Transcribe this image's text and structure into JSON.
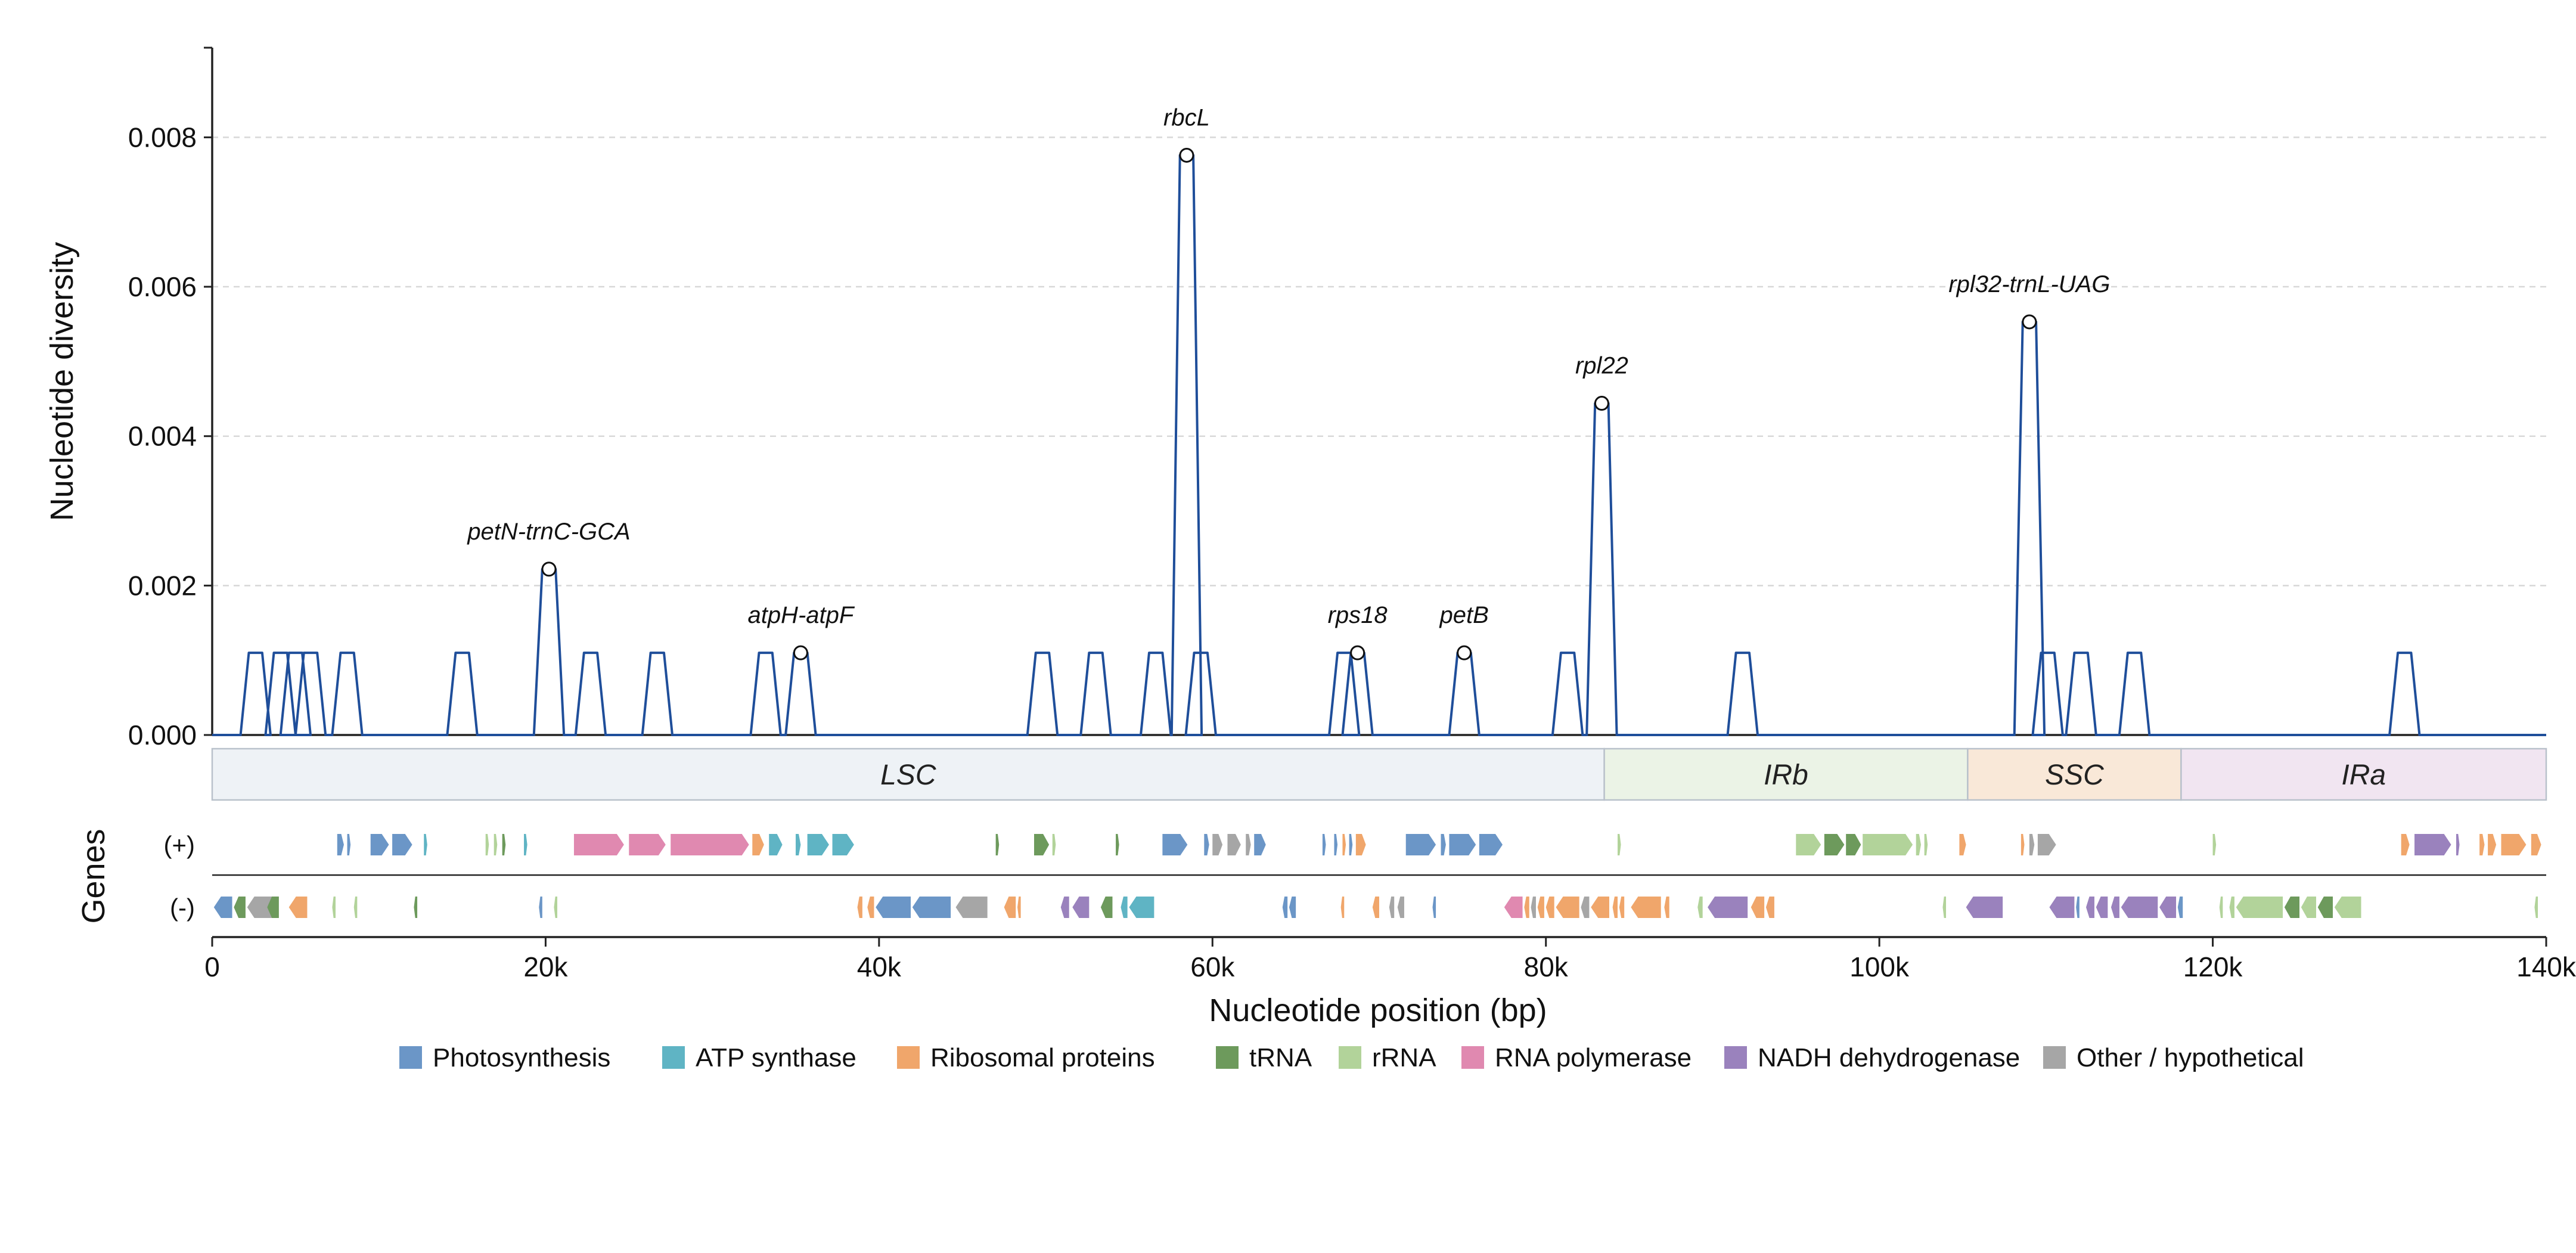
{
  "chart_data": {
    "type": "line",
    "ylabel": "Nucleotide diversity",
    "xlabel": "Nucleotide position (bp)",
    "ylim": [
      0,
      0.0092
    ],
    "xlim": [
      0,
      140000
    ],
    "grid": "horizontal dashed",
    "y_ticks": [
      {
        "value": 0,
        "label": "0.000"
      },
      {
        "value": 0.002,
        "label": "0.002"
      },
      {
        "value": 0.004,
        "label": "0.004"
      },
      {
        "value": 0.006,
        "label": "0.006"
      },
      {
        "value": 0.008,
        "label": "0.008"
      }
    ],
    "x_ticks": [
      {
        "value": 0,
        "label": "0"
      },
      {
        "value": 20000,
        "label": "20k"
      },
      {
        "value": 40000,
        "label": "40k"
      },
      {
        "value": 60000,
        "label": "60k"
      },
      {
        "value": 80000,
        "label": "80k"
      },
      {
        "value": 100000,
        "label": "100k"
      },
      {
        "value": 120000,
        "label": "120k"
      },
      {
        "value": 140000,
        "label": "140k"
      }
    ],
    "series": [
      {
        "color": "#1f4e9a",
        "peaks": [
          {
            "x": 2600,
            "y": 0.0011
          },
          {
            "x": 4100,
            "y": 0.0011
          },
          {
            "x": 5000,
            "y": 0.0011
          },
          {
            "x": 5900,
            "y": 0.0011
          },
          {
            "x": 8100,
            "y": 0.0011
          },
          {
            "x": 15000,
            "y": 0.0011
          },
          {
            "x": 20200,
            "y": 0.00222
          },
          {
            "x": 22700,
            "y": 0.0011
          },
          {
            "x": 26700,
            "y": 0.0011
          },
          {
            "x": 33200,
            "y": 0.0011
          },
          {
            "x": 35300,
            "y": 0.0011
          },
          {
            "x": 49800,
            "y": 0.0011
          },
          {
            "x": 53000,
            "y": 0.0011
          },
          {
            "x": 56600,
            "y": 0.0011
          },
          {
            "x": 58450,
            "y": 0.00776
          },
          {
            "x": 59300,
            "y": 0.0011
          },
          {
            "x": 67900,
            "y": 0.0011
          },
          {
            "x": 68700,
            "y": 0.0011
          },
          {
            "x": 75100,
            "y": 0.0011
          },
          {
            "x": 81300,
            "y": 0.0011
          },
          {
            "x": 83350,
            "y": 0.00444
          },
          {
            "x": 91800,
            "y": 0.0011
          },
          {
            "x": 109000,
            "y": 0.00553
          },
          {
            "x": 110100,
            "y": 0.0011
          },
          {
            "x": 112100,
            "y": 0.0011
          },
          {
            "x": 115300,
            "y": 0.0011
          },
          {
            "x": 131500,
            "y": 0.0011
          }
        ]
      }
    ],
    "annotations": [
      {
        "label": "petN-trnC-GCA",
        "x": 20200,
        "y": 0.00222
      },
      {
        "label": "atpH-atpF",
        "x": 35300,
        "y": 0.0011
      },
      {
        "label": "rbcL",
        "x": 58450,
        "y": 0.00776
      },
      {
        "label": "rps18",
        "x": 68700,
        "y": 0.0011
      },
      {
        "label": "petB",
        "x": 75100,
        "y": 0.0011
      },
      {
        "label": "rpl22",
        "x": 83350,
        "y": 0.00444
      },
      {
        "label": "rpl32-trnL-UAG",
        "x": 109000,
        "y": 0.00553
      }
    ],
    "regions": [
      {
        "label": "LSC",
        "start": 0,
        "end": 83500,
        "color": "#eef2f6"
      },
      {
        "label": "IRb",
        "start": 83500,
        "end": 105300,
        "color": "#ebf3e6"
      },
      {
        "label": "SSC",
        "start": 105300,
        "end": 118100,
        "color": "#f9e8d8"
      },
      {
        "label": "IRa",
        "start": 118100,
        "end": 140000,
        "color": "#f1e5f1"
      }
    ],
    "genes_axis_label": "Genes",
    "strand_labels": {
      "plus": "(+)",
      "minus": "(-)"
    },
    "legend": [
      {
        "label": "Photosynthesis",
        "color": "#6b96c7"
      },
      {
        "label": "ATP synthase",
        "color": "#5fb4c4"
      },
      {
        "label": "Ribosomal proteins",
        "color": "#f0a66b"
      },
      {
        "label": "tRNA",
        "color": "#6d9a5c"
      },
      {
        "label": "rRNA",
        "color": "#b2d39a"
      },
      {
        "label": "RNA polymerase",
        "color": "#e089b0"
      },
      {
        "label": "NADH dehydrogenase",
        "color": "#9a82bd"
      },
      {
        "label": "Other / hypothetical",
        "color": "#a6a6a6"
      }
    ],
    "genes_plus": [
      {
        "s": 7500,
        "e": 7900,
        "c": "Photosynthesis"
      },
      {
        "s": 8100,
        "e": 8300,
        "c": "Photosynthesis"
      },
      {
        "s": 9500,
        "e": 10600,
        "c": "Photosynthesis"
      },
      {
        "s": 10800,
        "e": 12000,
        "c": "Photosynthesis"
      },
      {
        "s": 12700,
        "e": 12900,
        "c": "ATP synthase"
      },
      {
        "s": 16400,
        "e": 16600,
        "c": "rRNA"
      },
      {
        "s": 16900,
        "e": 17100,
        "c": "rRNA"
      },
      {
        "s": 17400,
        "e": 17600,
        "c": "tRNA"
      },
      {
        "s": 18700,
        "e": 18900,
        "c": "ATP synthase"
      },
      {
        "s": 21700,
        "e": 24700,
        "c": "RNA polymerase"
      },
      {
        "s": 25000,
        "e": 27200,
        "c": "RNA polymerase"
      },
      {
        "s": 27500,
        "e": 32200,
        "c": "RNA polymerase"
      },
      {
        "s": 32400,
        "e": 33100,
        "c": "Ribosomal proteins"
      },
      {
        "s": 33400,
        "e": 34200,
        "c": "ATP synthase"
      },
      {
        "s": 35000,
        "e": 35300,
        "c": "ATP synthase"
      },
      {
        "s": 35700,
        "e": 37000,
        "c": "ATP synthase"
      },
      {
        "s": 37200,
        "e": 38500,
        "c": "ATP synthase"
      },
      {
        "s": 47000,
        "e": 47200,
        "c": "tRNA"
      },
      {
        "s": 49300,
        "e": 50200,
        "c": "tRNA"
      },
      {
        "s": 50400,
        "e": 50600,
        "c": "rRNA"
      },
      {
        "s": 54200,
        "e": 54400,
        "c": "tRNA"
      },
      {
        "s": 57000,
        "e": 58500,
        "c": "Photosynthesis"
      },
      {
        "s": 59500,
        "e": 59800,
        "c": "Photosynthesis"
      },
      {
        "s": 60000,
        "e": 60600,
        "c": "Other / hypothetical"
      },
      {
        "s": 60900,
        "e": 61700,
        "c": "Other / hypothetical"
      },
      {
        "s": 62000,
        "e": 62300,
        "c": "Other / hypothetical"
      },
      {
        "s": 62500,
        "e": 63200,
        "c": "Photosynthesis"
      },
      {
        "s": 66600,
        "e": 66800,
        "c": "Photosynthesis"
      },
      {
        "s": 67300,
        "e": 67500,
        "c": "Photosynthesis"
      },
      {
        "s": 67800,
        "e": 68000,
        "c": "Ribosomal proteins"
      },
      {
        "s": 68200,
        "e": 68400,
        "c": "Photosynthesis"
      },
      {
        "s": 68600,
        "e": 69200,
        "c": "Ribosomal proteins"
      },
      {
        "s": 71600,
        "e": 73400,
        "c": "Photosynthesis"
      },
      {
        "s": 73700,
        "e": 74000,
        "c": "Photosynthesis"
      },
      {
        "s": 74200,
        "e": 75800,
        "c": "Photosynthesis"
      },
      {
        "s": 76000,
        "e": 77400,
        "c": "Photosynthesis"
      },
      {
        "s": 84300,
        "e": 84500,
        "c": "rRNA"
      },
      {
        "s": 95000,
        "e": 96500,
        "c": "rRNA"
      },
      {
        "s": 96700,
        "e": 97900,
        "c": "tRNA"
      },
      {
        "s": 98000,
        "e": 98900,
        "c": "tRNA"
      },
      {
        "s": 99000,
        "e": 102000,
        "c": "rRNA"
      },
      {
        "s": 102200,
        "e": 102500,
        "c": "rRNA"
      },
      {
        "s": 102700,
        "e": 102900,
        "c": "rRNA"
      },
      {
        "s": 104800,
        "e": 105200,
        "c": "Ribosomal proteins"
      },
      {
        "s": 108500,
        "e": 108700,
        "c": "Ribosomal proteins"
      },
      {
        "s": 109000,
        "e": 109300,
        "c": "Other / hypothetical"
      },
      {
        "s": 109500,
        "e": 110600,
        "c": "Other / hypothetical"
      },
      {
        "s": 120000,
        "e": 120200,
        "c": "rRNA"
      },
      {
        "s": 131300,
        "e": 131800,
        "c": "Ribosomal proteins"
      },
      {
        "s": 132100,
        "e": 134300,
        "c": "NADH dehydrogenase"
      },
      {
        "s": 134600,
        "e": 134800,
        "c": "NADH dehydrogenase"
      },
      {
        "s": 136000,
        "e": 136300,
        "c": "Ribosomal proteins"
      },
      {
        "s": 136500,
        "e": 137000,
        "c": "Ribosomal proteins"
      },
      {
        "s": 137300,
        "e": 138800,
        "c": "Ribosomal proteins"
      },
      {
        "s": 139100,
        "e": 139700,
        "c": "Ribosomal proteins"
      }
    ],
    "genes_minus": [
      {
        "s": 100,
        "e": 1200,
        "c": "Photosynthesis"
      },
      {
        "s": 1300,
        "e": 2000,
        "c": "tRNA"
      },
      {
        "s": 2100,
        "e": 3700,
        "c": "Other / hypothetical"
      },
      {
        "s": 3300,
        "e": 4000,
        "c": "tRNA"
      },
      {
        "s": 4600,
        "e": 5700,
        "c": "Ribosomal proteins"
      },
      {
        "s": 7200,
        "e": 7400,
        "c": "rRNA"
      },
      {
        "s": 8500,
        "e": 8700,
        "c": "rRNA"
      },
      {
        "s": 12100,
        "e": 12300,
        "c": "tRNA"
      },
      {
        "s": 19600,
        "e": 19800,
        "c": "Photosynthesis"
      },
      {
        "s": 20500,
        "e": 20700,
        "c": "rRNA"
      },
      {
        "s": 38700,
        "e": 39000,
        "c": "Ribosomal proteins"
      },
      {
        "s": 39300,
        "e": 39700,
        "c": "Ribosomal proteins"
      },
      {
        "s": 39800,
        "e": 41900,
        "c": "Photosynthesis"
      },
      {
        "s": 42000,
        "e": 44300,
        "c": "Photosynthesis"
      },
      {
        "s": 44600,
        "e": 46500,
        "c": "Other / hypothetical"
      },
      {
        "s": 47500,
        "e": 48200,
        "c": "Ribosomal proteins"
      },
      {
        "s": 48300,
        "e": 48500,
        "c": "Ribosomal proteins"
      },
      {
        "s": 50900,
        "e": 51400,
        "c": "NADH dehydrogenase"
      },
      {
        "s": 51600,
        "e": 52600,
        "c": "NADH dehydrogenase"
      },
      {
        "s": 53300,
        "e": 54000,
        "c": "tRNA"
      },
      {
        "s": 54500,
        "e": 54900,
        "c": "ATP synthase"
      },
      {
        "s": 55000,
        "e": 56500,
        "c": "ATP synthase"
      },
      {
        "s": 64200,
        "e": 64500,
        "c": "Photosynthesis"
      },
      {
        "s": 64600,
        "e": 65000,
        "c": "Photosynthesis"
      },
      {
        "s": 67700,
        "e": 67900,
        "c": "Ribosomal proteins"
      },
      {
        "s": 69600,
        "e": 70000,
        "c": "Ribosomal proteins"
      },
      {
        "s": 70600,
        "e": 70900,
        "c": "Other / hypothetical"
      },
      {
        "s": 71100,
        "e": 71500,
        "c": "Other / hypothetical"
      },
      {
        "s": 73200,
        "e": 73400,
        "c": "Photosynthesis"
      },
      {
        "s": 77500,
        "e": 78600,
        "c": "RNA polymerase"
      },
      {
        "s": 78700,
        "e": 79000,
        "c": "Ribosomal proteins"
      },
      {
        "s": 79100,
        "e": 79400,
        "c": "Other / hypothetical"
      },
      {
        "s": 79500,
        "e": 79900,
        "c": "Ribosomal proteins"
      },
      {
        "s": 80000,
        "e": 80500,
        "c": "Ribosomal proteins"
      },
      {
        "s": 80600,
        "e": 82000,
        "c": "Ribosomal proteins"
      },
      {
        "s": 82100,
        "e": 82600,
        "c": "Other / hypothetical"
      },
      {
        "s": 82700,
        "e": 83800,
        "c": "Ribosomal proteins"
      },
      {
        "s": 84000,
        "e": 84300,
        "c": "Ribosomal proteins"
      },
      {
        "s": 84400,
        "e": 84700,
        "c": "Ribosomal proteins"
      },
      {
        "s": 85100,
        "e": 86900,
        "c": "Ribosomal proteins"
      },
      {
        "s": 87100,
        "e": 87400,
        "c": "Ribosomal proteins"
      },
      {
        "s": 89100,
        "e": 89400,
        "c": "rRNA"
      },
      {
        "s": 89700,
        "e": 92100,
        "c": "NADH dehydrogenase"
      },
      {
        "s": 92300,
        "e": 93100,
        "c": "Ribosomal proteins"
      },
      {
        "s": 93200,
        "e": 93700,
        "c": "Ribosomal proteins"
      },
      {
        "s": 103800,
        "e": 104000,
        "c": "rRNA"
      },
      {
        "s": 105200,
        "e": 107400,
        "c": "NADH dehydrogenase"
      },
      {
        "s": 110200,
        "e": 111700,
        "c": "NADH dehydrogenase"
      },
      {
        "s": 111800,
        "e": 112000,
        "c": "Photosynthesis"
      },
      {
        "s": 112400,
        "e": 112900,
        "c": "NADH dehydrogenase"
      },
      {
        "s": 113000,
        "e": 113700,
        "c": "NADH dehydrogenase"
      },
      {
        "s": 113900,
        "e": 114400,
        "c": "NADH dehydrogenase"
      },
      {
        "s": 114500,
        "e": 116700,
        "c": "NADH dehydrogenase"
      },
      {
        "s": 116800,
        "e": 117800,
        "c": "NADH dehydrogenase"
      },
      {
        "s": 117900,
        "e": 118200,
        "c": "Photosynthesis"
      },
      {
        "s": 120400,
        "e": 120600,
        "c": "rRNA"
      },
      {
        "s": 121000,
        "e": 121300,
        "c": "rRNA"
      },
      {
        "s": 121400,
        "e": 124200,
        "c": "rRNA"
      },
      {
        "s": 124300,
        "e": 125200,
        "c": "tRNA"
      },
      {
        "s": 125300,
        "e": 126200,
        "c": "rRNA"
      },
      {
        "s": 126300,
        "e": 127200,
        "c": "tRNA"
      },
      {
        "s": 127300,
        "e": 128900,
        "c": "rRNA"
      },
      {
        "s": 139300,
        "e": 139500,
        "c": "rRNA"
      }
    ]
  }
}
